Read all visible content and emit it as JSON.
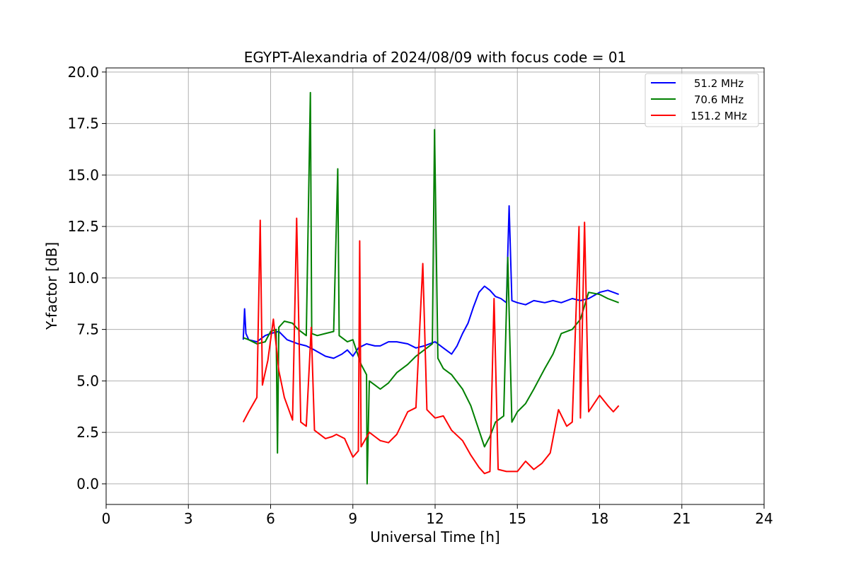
{
  "chart_data": {
    "type": "line",
    "title": "EGYPT-Alexandria of 2024/08/09 with focus code = 01",
    "xlabel": "Universal Time [h]",
    "ylabel": "Y-factor [dB]",
    "xlim": [
      0,
      24
    ],
    "ylim": [
      -1.0,
      20.2
    ],
    "xticks": [
      0,
      3,
      6,
      9,
      12,
      15,
      18,
      21,
      24
    ],
    "xtick_labels": [
      "0",
      "3",
      "6",
      "9",
      "12",
      "15",
      "18",
      "21",
      "24"
    ],
    "yticks": [
      0.0,
      2.5,
      5.0,
      7.5,
      10.0,
      12.5,
      15.0,
      17.5,
      20.0
    ],
    "ytick_labels": [
      "0.0",
      "2.5",
      "5.0",
      "7.5",
      "10.0",
      "12.5",
      "15.0",
      "17.5",
      "20.0"
    ],
    "grid": true,
    "legend_position": "top-right",
    "series": [
      {
        "name": "51.2 MHz",
        "color": "#0000ff",
        "x": [
          5.0,
          5.05,
          5.1,
          5.2,
          5.5,
          5.8,
          6.0,
          6.3,
          6.6,
          7.0,
          7.3,
          7.6,
          8.0,
          8.3,
          8.6,
          8.8,
          9.0,
          9.2,
          9.5,
          9.8,
          10.0,
          10.3,
          10.6,
          11.0,
          11.3,
          11.6,
          12.0,
          12.3,
          12.6,
          12.8,
          13.0,
          13.2,
          13.4,
          13.6,
          13.8,
          14.0,
          14.2,
          14.4,
          14.6,
          14.7,
          14.8,
          15.0,
          15.3,
          15.6,
          16.0,
          16.3,
          16.6,
          17.0,
          17.3,
          17.6,
          18.0,
          18.3,
          18.5,
          18.7
        ],
        "y": [
          7.0,
          8.5,
          7.3,
          7.0,
          6.9,
          7.2,
          7.3,
          7.4,
          7.0,
          6.8,
          6.7,
          6.5,
          6.2,
          6.1,
          6.3,
          6.5,
          6.2,
          6.6,
          6.8,
          6.7,
          6.7,
          6.9,
          6.9,
          6.8,
          6.6,
          6.7,
          6.9,
          6.6,
          6.3,
          6.7,
          7.3,
          7.8,
          8.6,
          9.3,
          9.6,
          9.4,
          9.1,
          9.0,
          8.8,
          13.5,
          8.9,
          8.8,
          8.7,
          8.9,
          8.8,
          8.9,
          8.8,
          9.0,
          8.9,
          9.0,
          9.3,
          9.4,
          9.3,
          9.2
        ]
      },
      {
        "name": "70.6 MHz",
        "color": "#008000",
        "x": [
          5.0,
          5.2,
          5.5,
          5.8,
          6.0,
          6.2,
          6.25,
          6.3,
          6.5,
          6.8,
          7.0,
          7.3,
          7.45,
          7.5,
          7.7,
          8.0,
          8.3,
          8.45,
          8.5,
          8.8,
          9.0,
          9.3,
          9.5,
          9.52,
          9.6,
          9.8,
          10.0,
          10.3,
          10.6,
          11.0,
          11.3,
          11.6,
          11.9,
          11.98,
          12.1,
          12.3,
          12.6,
          13.0,
          13.3,
          13.6,
          13.8,
          14.0,
          14.2,
          14.5,
          14.65,
          14.8,
          15.0,
          15.3,
          15.6,
          16.0,
          16.3,
          16.6,
          17.0,
          17.3,
          17.6,
          18.0,
          18.3,
          18.7
        ],
        "y": [
          7.1,
          7.0,
          6.8,
          6.9,
          7.4,
          7.5,
          1.5,
          7.6,
          7.9,
          7.8,
          7.5,
          7.2,
          19.0,
          7.3,
          7.2,
          7.3,
          7.4,
          15.3,
          7.2,
          6.9,
          7.0,
          5.8,
          5.3,
          0.0,
          5.0,
          4.8,
          4.6,
          4.9,
          5.4,
          5.8,
          6.2,
          6.5,
          6.8,
          17.2,
          6.1,
          5.6,
          5.3,
          4.6,
          3.8,
          2.6,
          1.8,
          2.3,
          3.0,
          3.3,
          11.0,
          3.0,
          3.5,
          3.9,
          4.6,
          5.6,
          6.3,
          7.3,
          7.5,
          8.0,
          9.3,
          9.2,
          9.0,
          8.8
        ]
      },
      {
        "name": "151.2 MHz",
        "color": "#ff0000",
        "x": [
          5.0,
          5.2,
          5.5,
          5.62,
          5.7,
          5.9,
          6.1,
          6.3,
          6.5,
          6.8,
          6.95,
          7.1,
          7.3,
          7.48,
          7.6,
          8.0,
          8.25,
          8.4,
          8.7,
          9.0,
          9.2,
          9.25,
          9.3,
          9.6,
          9.8,
          10.0,
          10.3,
          10.6,
          11.0,
          11.3,
          11.55,
          11.7,
          12.0,
          12.3,
          12.6,
          13.0,
          13.3,
          13.6,
          13.8,
          14.0,
          14.15,
          14.3,
          14.6,
          15.0,
          15.3,
          15.6,
          15.9,
          16.2,
          16.5,
          16.8,
          17.0,
          17.25,
          17.3,
          17.45,
          17.6,
          18.0,
          18.3,
          18.5,
          18.7
        ],
        "y": [
          3.0,
          3.5,
          4.2,
          12.8,
          4.8,
          6.0,
          8.0,
          5.5,
          4.2,
          3.1,
          12.9,
          3.0,
          2.8,
          7.6,
          2.6,
          2.2,
          2.3,
          2.4,
          2.2,
          1.3,
          1.6,
          11.8,
          1.8,
          2.5,
          2.3,
          2.1,
          2.0,
          2.4,
          3.5,
          3.7,
          10.7,
          3.6,
          3.2,
          3.3,
          2.6,
          2.1,
          1.4,
          0.8,
          0.5,
          0.6,
          9.0,
          0.7,
          0.6,
          0.6,
          1.1,
          0.7,
          1.0,
          1.5,
          3.6,
          2.8,
          3.0,
          12.5,
          3.2,
          12.7,
          3.5,
          4.3,
          3.8,
          3.5,
          3.8
        ]
      }
    ]
  }
}
